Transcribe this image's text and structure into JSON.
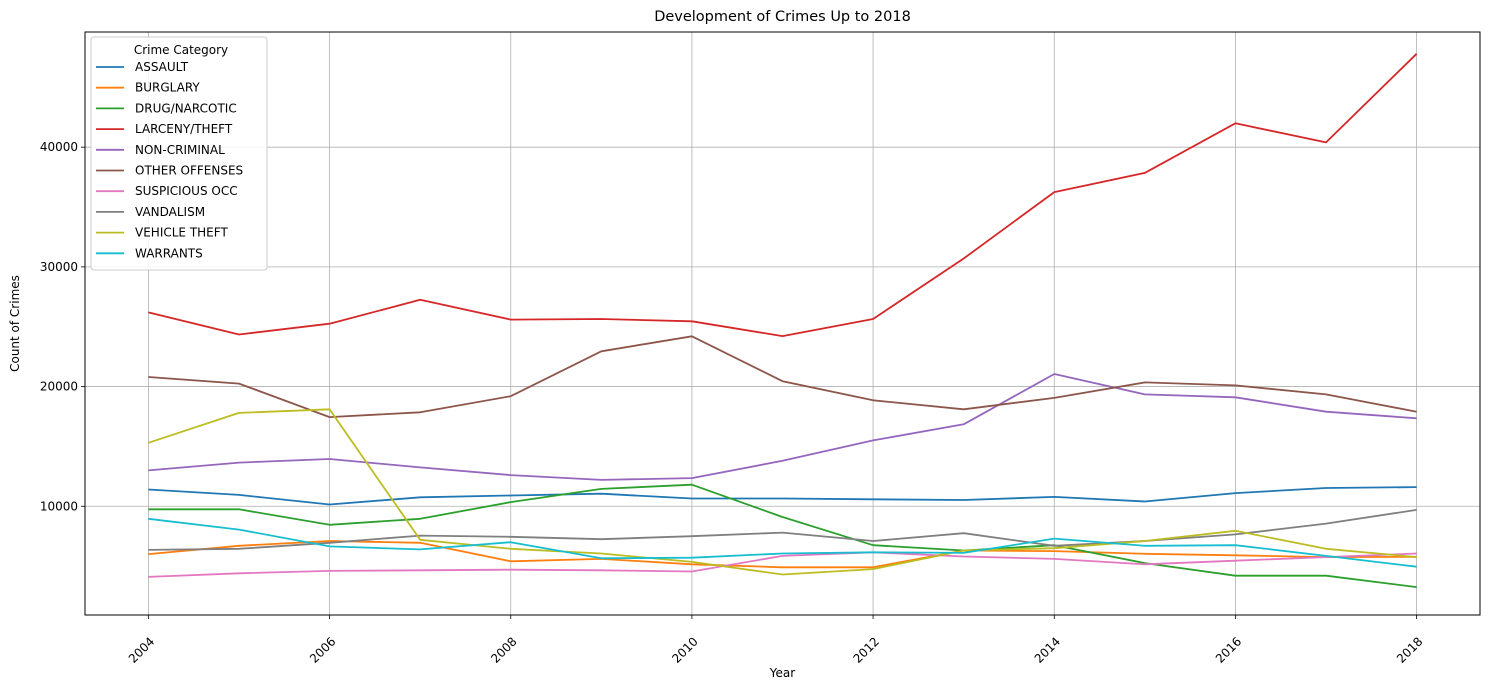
{
  "chart_data": {
    "type": "line",
    "title": "Development of Crimes Up to 2018",
    "xlabel": "Year",
    "ylabel": "Count of Crimes",
    "x": [
      2004,
      2005,
      2006,
      2007,
      2008,
      2009,
      2010,
      2011,
      2012,
      2013,
      2014,
      2015,
      2016,
      2017,
      2018
    ],
    "xticks": [
      2004,
      2006,
      2008,
      2010,
      2012,
      2014,
      2016,
      2018
    ],
    "yticks": [
      10000,
      20000,
      30000,
      40000
    ],
    "xlim": [
      2003.3,
      2018.7
    ],
    "ylim": [
      915,
      49625
    ],
    "grid": true,
    "legend": {
      "title": "Crime Category",
      "placement": "upper-left"
    },
    "series": [
      {
        "name": "ASSAULT",
        "color": "#1f77b4",
        "values": [
          11400,
          10950,
          10150,
          10750,
          10900,
          11050,
          10650,
          10650,
          10580,
          10520,
          10780,
          10400,
          11100,
          11530,
          11600
        ]
      },
      {
        "name": "BURGLARY",
        "color": "#ff7f0e",
        "values": [
          6000,
          6700,
          7100,
          6950,
          5400,
          5600,
          5150,
          4900,
          4900,
          6300,
          6250,
          6030,
          5900,
          5750,
          5780
        ]
      },
      {
        "name": "DRUG/NARCOTIC",
        "color": "#2ca02c",
        "values": [
          9750,
          9750,
          8450,
          8950,
          10350,
          11450,
          11800,
          9100,
          6750,
          6300,
          6750,
          5250,
          4200,
          4200,
          3250
        ]
      },
      {
        "name": "LARCENY/THEFT",
        "color": "#d62728",
        "values": [
          26200,
          24350,
          25250,
          27250,
          25600,
          25650,
          25450,
          24220,
          25650,
          30700,
          36250,
          37850,
          42000,
          40400,
          47800
        ]
      },
      {
        "name": "NON-CRIMINAL",
        "color": "#9467bd",
        "values": [
          13000,
          13650,
          13950,
          13250,
          12600,
          12200,
          12350,
          13800,
          15500,
          16850,
          21050,
          19350,
          19100,
          17900,
          17350
        ]
      },
      {
        "name": "OTHER OFFENSES",
        "color": "#8c564b",
        "values": [
          20800,
          20250,
          17450,
          17850,
          19200,
          22950,
          24200,
          20450,
          18850,
          18100,
          19050,
          20350,
          20100,
          19350,
          17900
        ]
      },
      {
        "name": "SUSPICIOUS OCC",
        "color": "#e377c2",
        "values": [
          4100,
          4400,
          4600,
          4650,
          4700,
          4650,
          4550,
          5850,
          6150,
          5800,
          5600,
          5150,
          5450,
          5750,
          6050
        ]
      },
      {
        "name": "VANDALISM",
        "color": "#7f7f7f",
        "values": [
          6350,
          6450,
          6950,
          7550,
          7450,
          7250,
          7500,
          7800,
          7100,
          7750,
          6700,
          7100,
          7650,
          8550,
          9700
        ]
      },
      {
        "name": "VEHICLE THEFT",
        "color": "#bcbd22",
        "values": [
          15300,
          17800,
          18100,
          7200,
          6450,
          6050,
          5350,
          4300,
          4750,
          6300,
          6500,
          7100,
          7950,
          6450,
          5750
        ]
      },
      {
        "name": "WARRANTS",
        "color": "#17becf",
        "values": [
          8950,
          8050,
          6650,
          6400,
          7000,
          5650,
          5700,
          6050,
          6150,
          6100,
          7300,
          6700,
          6750,
          5850,
          4950
        ]
      }
    ]
  }
}
